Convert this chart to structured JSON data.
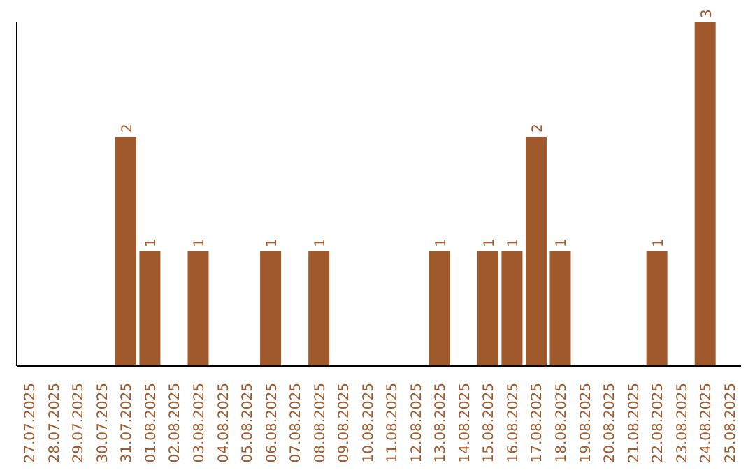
{
  "chart_data": {
    "type": "bar",
    "categories": [
      "27.07.2025",
      "28.07.2025",
      "29.07.2025",
      "30.07.2025",
      "31.07.2025",
      "01.08.2025",
      "02.08.2025",
      "03.08.2025",
      "04.08.2025",
      "05.08.2025",
      "06.08.2025",
      "07.08.2025",
      "08.08.2025",
      "09.08.2025",
      "10.08.2025",
      "11.08.2025",
      "12.08.2025",
      "13.08.2025",
      "14.08.2025",
      "15.08.2025",
      "16.08.2025",
      "17.08.2025",
      "18.08.2025",
      "19.08.2025",
      "20.08.2025",
      "21.08.2025",
      "22.08.2025",
      "23.08.2025",
      "24.08.2025",
      "25.08.2025"
    ],
    "values": [
      0,
      0,
      0,
      0,
      2,
      1,
      0,
      1,
      0,
      0,
      1,
      0,
      1,
      0,
      0,
      0,
      0,
      1,
      0,
      1,
      1,
      2,
      1,
      0,
      0,
      0,
      1,
      0,
      3,
      0
    ],
    "value_labels": [
      null,
      null,
      null,
      null,
      "2",
      "1",
      null,
      "1",
      null,
      null,
      "1",
      null,
      "1",
      null,
      null,
      null,
      null,
      "1",
      null,
      "1",
      "1",
      "2",
      "1",
      null,
      null,
      null,
      "1",
      null,
      "3",
      null
    ],
    "color": "#a0592b",
    "tick_labels": "x",
    "grid": false,
    "legend": false
  }
}
